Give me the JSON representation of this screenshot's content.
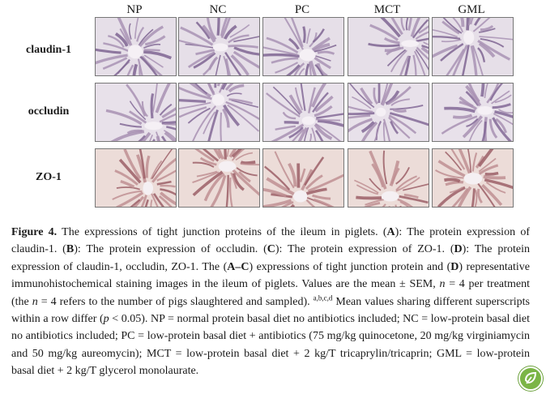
{
  "columns": [
    "NP",
    "NC",
    "PC",
    "MCT",
    "GML"
  ],
  "rows": [
    "claudin-1",
    "occludin",
    "ZO-1"
  ],
  "stain_colors": {
    "claudin-1": {
      "bg": "#e6dfe8",
      "tissue": "#a893b4",
      "dark": "#7e6592"
    },
    "occludin": {
      "bg": "#e8e1ea",
      "tissue": "#a890b3",
      "dark": "#826896"
    },
    "ZO-1": {
      "bg": "#ecdcd8",
      "tissue": "#c08f93",
      "dark": "#9c5f67"
    }
  },
  "caption": {
    "label": "Figure 4.",
    "p1": " The expressions of tight junction proteins of the ileum in piglets. (",
    "A": "A",
    "p2": "): The protein expression of claudin-1. (",
    "B": "B",
    "p3": "): The protein expression of occludin. (",
    "C": "C",
    "p4": "): The protein expression of ZO-1. (",
    "D": "D",
    "p5": "): The protein expression of claudin-1, occludin, ZO-1. The (",
    "AC": "A–C",
    "p6": ") expressions of tight junction protein and (",
    "D2": "D",
    "p7": ") representative immunohistochemical staining images in the ileum of piglets. Values are the mean ± SEM, ",
    "n1": "n",
    "p8": " = 4 per treatment (the ",
    "n2": "n",
    "p9": " = 4 refers to the number of pigs slaughtered and sampled). ",
    "sup": "a,b,c,d",
    "p10": " Mean values sharing different superscripts within a row differ (",
    "p": "p",
    "p11": " < 0.05). NP = normal protein basal diet no antibiotics included; NC = low-protein basal diet no antibiotics included; PC = low-protein basal diet + antibiotics (75 mg/kg quinocetone, 20 mg/kg virginiamycin and 50 mg/kg aureomycin); MCT = low-protein basal diet + 2 kg/T tricaprylin/tricaprin; GML = low-protein basal diet + 2 kg/T glycerol monolaurate."
  },
  "logo_icon": "leaf-checkmark-icon"
}
